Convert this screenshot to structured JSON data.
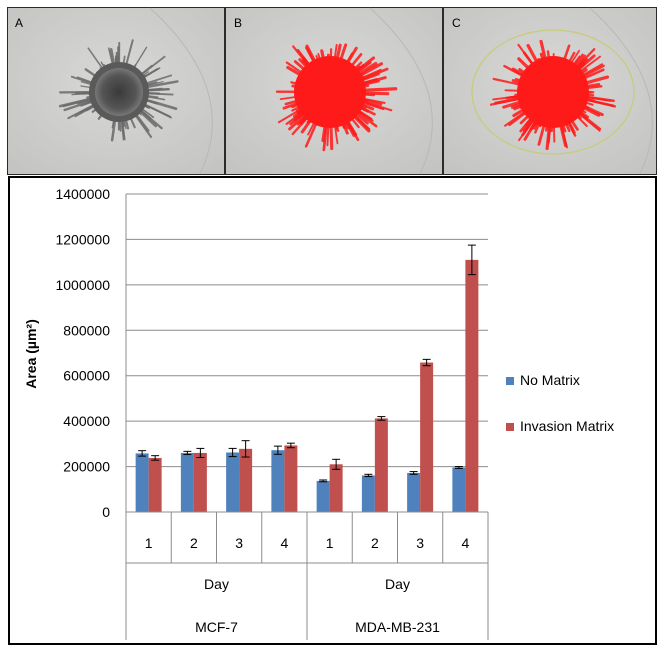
{
  "panels": [
    {
      "label": "A",
      "type": "brightfield"
    },
    {
      "label": "B",
      "type": "red-mask"
    },
    {
      "label": "C",
      "type": "red-mask-with-ellipse"
    }
  ],
  "colors": {
    "no_matrix": "#4F81BD",
    "invasion_matrix": "#C0504D",
    "mask": "#FF1A1A",
    "ellipse": "#C8CC7A"
  },
  "chart_data": {
    "type": "bar",
    "ylabel": "Area (µm²)",
    "ylim": [
      0,
      1400000
    ],
    "yticks": [
      "0",
      "200000",
      "400000",
      "600000",
      "800000",
      "1000000",
      "1200000",
      "1400000"
    ],
    "grid": true,
    "legend_position": "right",
    "groups": [
      {
        "name": "MCF-7",
        "axis_label": "Day",
        "categories": [
          "1",
          "2",
          "3",
          "4"
        ]
      },
      {
        "name": "MDA-MB-231",
        "axis_label": "Day",
        "categories": [
          "1",
          "2",
          "3",
          "4"
        ]
      }
    ],
    "series": [
      {
        "name": "No Matrix",
        "values": [
          258000,
          260000,
          262000,
          272000,
          137000,
          161000,
          172000,
          196000
        ],
        "errors": [
          12000,
          7000,
          18000,
          18000,
          4000,
          5000,
          6000,
          4000
        ]
      },
      {
        "name": "Invasion Matrix",
        "values": [
          238000,
          260000,
          278000,
          293000,
          210000,
          412000,
          658000,
          1110000
        ],
        "errors": [
          10000,
          20000,
          36000,
          10000,
          22000,
          8000,
          14000,
          65000
        ]
      }
    ]
  }
}
